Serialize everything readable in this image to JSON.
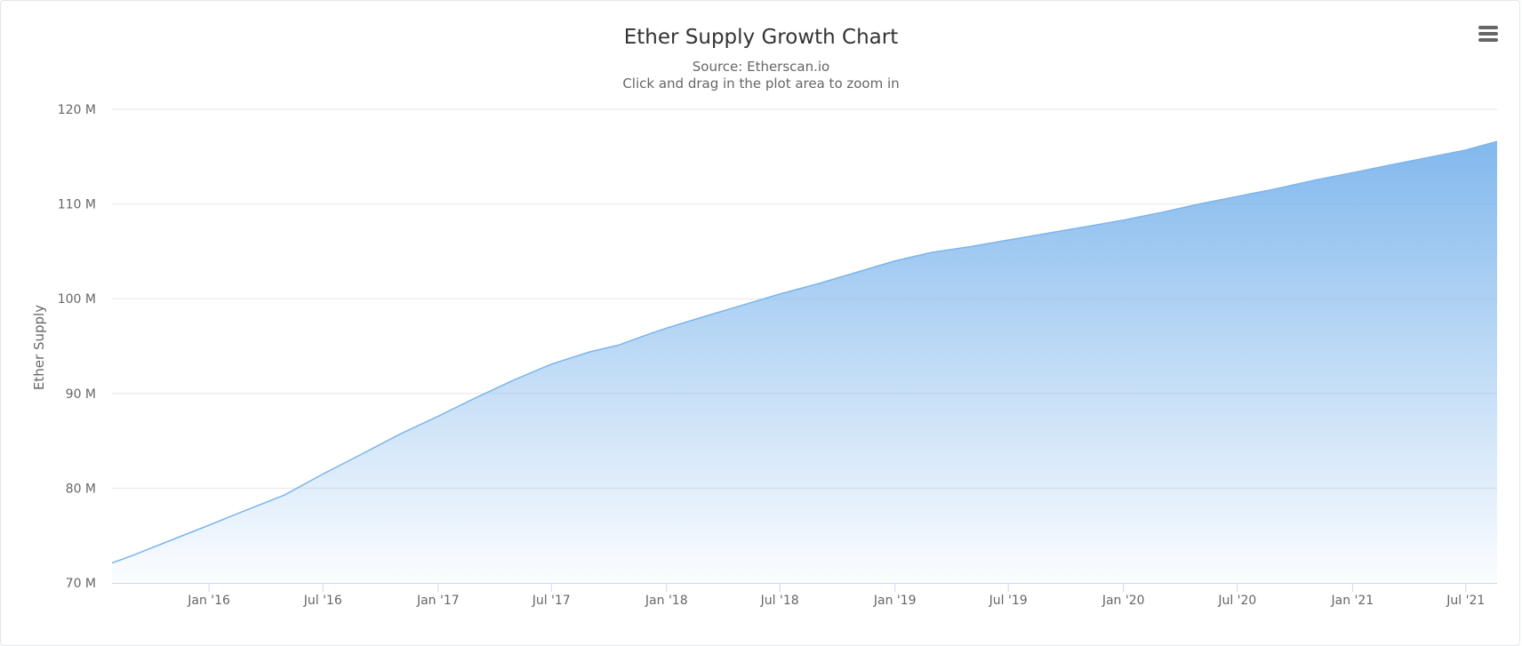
{
  "chart_data": {
    "type": "area",
    "title": "Ether Supply Growth Chart",
    "subtitle_lines": [
      "Source: Etherscan.io",
      "Click and drag in the plot area to zoom in"
    ],
    "xlabel": "",
    "ylabel": "Ether Supply",
    "ylim": [
      70000000,
      120000000
    ],
    "y_ticks": [
      {
        "value": 70000000,
        "label": "70 M"
      },
      {
        "value": 80000000,
        "label": "80 M"
      },
      {
        "value": 90000000,
        "label": "90 M"
      },
      {
        "value": 100000000,
        "label": "100 M"
      },
      {
        "value": 110000000,
        "label": "110 M"
      },
      {
        "value": 120000000,
        "label": "120 M"
      }
    ],
    "xlim": [
      "2015-07-30",
      "2021-08-20"
    ],
    "x_ticks": [
      {
        "date": "2016-01-01",
        "label": "Jan '16"
      },
      {
        "date": "2016-07-01",
        "label": "Jul '16"
      },
      {
        "date": "2017-01-01",
        "label": "Jan '17"
      },
      {
        "date": "2017-07-01",
        "label": "Jul '17"
      },
      {
        "date": "2018-01-01",
        "label": "Jan '18"
      },
      {
        "date": "2018-07-01",
        "label": "Jul '18"
      },
      {
        "date": "2019-01-01",
        "label": "Jan '19"
      },
      {
        "date": "2019-07-01",
        "label": "Jul '19"
      },
      {
        "date": "2020-01-01",
        "label": "Jan '20"
      },
      {
        "date": "2020-07-01",
        "label": "Jul '20"
      },
      {
        "date": "2021-01-01",
        "label": "Jan '21"
      },
      {
        "date": "2021-07-01",
        "label": "Jul '21"
      }
    ],
    "grid": true,
    "legend": "none",
    "colors": {
      "line": "#7cb5ec",
      "fill_top": "#7cb5ec",
      "grid": "#e6e6e6",
      "axis": "#ccd6eb",
      "title": "#333333",
      "subtitle": "#666666",
      "labels": "#666666"
    },
    "series": [
      {
        "x": [
          "2015-07-30",
          "2015-09-01",
          "2015-11-01",
          "2016-01-01",
          "2016-03-01",
          "2016-05-01",
          "2016-07-01",
          "2016-09-01",
          "2016-11-01",
          "2017-01-01",
          "2017-03-01",
          "2017-05-01",
          "2017-07-01",
          "2017-09-01",
          "2017-10-16",
          "2017-12-01",
          "2018-01-01",
          "2018-03-01",
          "2018-05-01",
          "2018-07-01",
          "2018-09-01",
          "2018-11-01",
          "2019-01-01",
          "2019-03-01",
          "2019-05-01",
          "2019-07-01",
          "2019-09-01",
          "2019-11-01",
          "2020-01-01",
          "2020-03-01",
          "2020-05-01",
          "2020-07-01",
          "2020-09-01",
          "2020-11-01",
          "2021-01-01",
          "2021-03-01",
          "2021-05-01",
          "2021-07-01",
          "2021-08-20"
        ],
        "values": [
          72100000,
          72900000,
          74500000,
          76100000,
          77700000,
          79300000,
          81500000,
          83600000,
          85700000,
          87600000,
          89500000,
          91400000,
          93100000,
          94400000,
          95100000,
          96200000,
          96900000,
          98100000,
          99300000,
          100500000,
          101600000,
          102800000,
          104000000,
          104900000,
          105500000,
          106200000,
          106900000,
          107600000,
          108300000,
          109100000,
          110000000,
          110800000,
          111600000,
          112500000,
          113300000,
          114100000,
          114900000,
          115700000,
          116600000
        ]
      }
    ]
  }
}
